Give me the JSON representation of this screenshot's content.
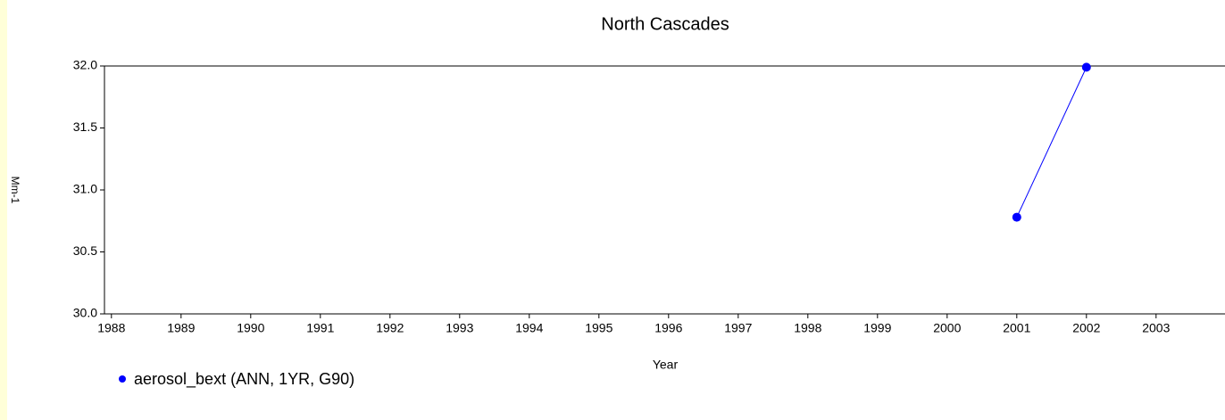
{
  "chart_data": {
    "type": "line",
    "title": "North Cascades",
    "x_label": "Year",
    "y_label": "Mm-1",
    "x": [
      2001,
      2002
    ],
    "series": [
      {
        "name": "aerosol_bext (ANN, 1YR, G90)",
        "color": "#0000ff",
        "values": [
          30.78,
          31.99
        ]
      }
    ],
    "xlim": [
      1987.9,
      2004
    ],
    "xticks": [
      1988,
      1989,
      1990,
      1991,
      1992,
      1993,
      1994,
      1995,
      1996,
      1997,
      1998,
      1999,
      2000,
      2001,
      2002,
      2003
    ],
    "ylim": [
      30,
      32
    ],
    "yticks": [
      {
        "value": 30,
        "label": "30.0"
      },
      30.5,
      {
        "value": 31,
        "label": "31.0"
      },
      31.5,
      {
        "value": 32,
        "label": "32.0"
      }
    ],
    "legend": "bottom-left"
  }
}
